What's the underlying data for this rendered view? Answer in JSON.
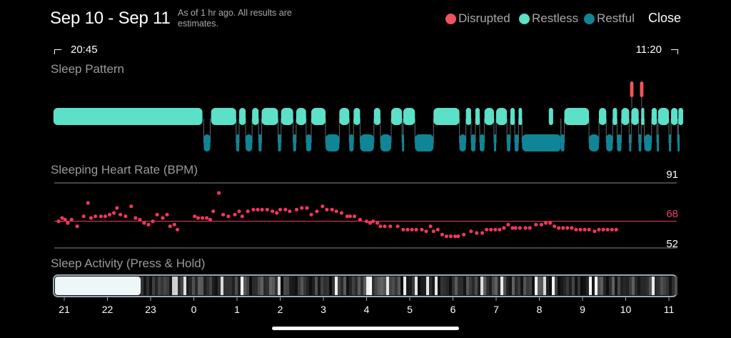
{
  "header": {
    "title": "Sep 10 - Sep 11",
    "note": "As of 1 hr ago. All results are estimates.",
    "close_label": "Close"
  },
  "legend": [
    {
      "label": "Disrupted",
      "color": "#f2545b"
    },
    {
      "label": "Restless",
      "color": "#5ce0c8"
    },
    {
      "label": "Restful",
      "color": "#0f8596"
    }
  ],
  "time_range": {
    "start": "20:45",
    "end": "11:20"
  },
  "sections": {
    "pattern": "Sleep Pattern",
    "heart": "Sleeping Heart Rate (BPM)",
    "activity": "Sleep Activity (Press & Hold)"
  },
  "chart_data": [
    {
      "type": "timeline",
      "title": "Sleep Pattern",
      "x_unit": "hours since 21:00",
      "x_range": [
        -0.25,
        14.33
      ],
      "states": [
        "Disrupted",
        "Restless",
        "Restful"
      ],
      "restless": [
        [
          -0.25,
          3.2
        ],
        [
          3.4,
          3.98
        ],
        [
          4.05,
          4.2
        ],
        [
          4.35,
          4.5
        ],
        [
          4.57,
          4.95
        ],
        [
          5.02,
          5.3
        ],
        [
          5.37,
          5.6
        ],
        [
          5.72,
          6.05
        ],
        [
          6.37,
          6.6
        ],
        [
          6.7,
          6.85
        ],
        [
          7.17,
          7.32
        ],
        [
          7.57,
          7.82
        ],
        [
          7.85,
          8.12
        ],
        [
          8.55,
          9.15
        ],
        [
          9.3,
          9.42
        ],
        [
          9.52,
          9.62
        ],
        [
          9.73,
          9.95
        ],
        [
          10.0,
          10.25
        ],
        [
          10.33,
          10.43
        ],
        [
          10.52,
          10.6
        ],
        [
          11.22,
          11.32
        ],
        [
          11.58,
          12.15
        ],
        [
          12.38,
          12.55
        ],
        [
          12.7,
          12.8
        ],
        [
          12.9,
          13.08
        ],
        [
          13.13,
          13.3
        ],
        [
          13.36,
          13.43
        ],
        [
          13.6,
          13.72
        ],
        [
          13.75,
          14.0
        ],
        [
          14.05,
          14.2
        ],
        [
          14.22,
          14.33
        ]
      ],
      "restful": [
        [
          3.23,
          3.38
        ],
        [
          3.98,
          4.05
        ],
        [
          4.2,
          4.35
        ],
        [
          4.5,
          4.57
        ],
        [
          4.95,
          5.02
        ],
        [
          5.3,
          5.37
        ],
        [
          5.6,
          5.72
        ],
        [
          6.05,
          6.37
        ],
        [
          6.6,
          6.7
        ],
        [
          6.85,
          7.17
        ],
        [
          7.32,
          7.57
        ],
        [
          7.82,
          7.85
        ],
        [
          8.12,
          8.55
        ],
        [
          9.15,
          9.3
        ],
        [
          9.42,
          9.52
        ],
        [
          9.62,
          9.73
        ],
        [
          9.95,
          10.0
        ],
        [
          10.25,
          10.33
        ],
        [
          10.43,
          10.52
        ],
        [
          10.6,
          11.5
        ],
        [
          11.5,
          11.58
        ],
        [
          12.15,
          12.38
        ],
        [
          12.55,
          12.7
        ],
        [
          12.8,
          12.9
        ],
        [
          13.08,
          13.13
        ],
        [
          13.3,
          13.36
        ],
        [
          13.43,
          13.6
        ],
        [
          13.72,
          13.75
        ],
        [
          14.0,
          14.05
        ],
        [
          14.2,
          14.22
        ]
      ],
      "disrupted": [
        [
          13.1,
          13.18
        ],
        [
          13.33,
          13.41
        ]
      ]
    },
    {
      "type": "scatter",
      "title": "Sleeping Heart Rate (BPM)",
      "x_unit": "hours since 21:00",
      "ylim": [
        52,
        91
      ],
      "reference_lines": [
        91,
        68,
        52
      ],
      "points": [
        [
          -0.13,
          68
        ],
        [
          -0.05,
          70
        ],
        [
          0.02,
          69
        ],
        [
          0.08,
          67
        ],
        [
          0.17,
          69
        ],
        [
          0.3,
          65
        ],
        [
          0.45,
          71
        ],
        [
          0.55,
          79
        ],
        [
          0.62,
          70
        ],
        [
          0.72,
          71
        ],
        [
          0.85,
          71
        ],
        [
          0.95,
          71
        ],
        [
          1.05,
          72
        ],
        [
          1.15,
          73
        ],
        [
          1.22,
          76
        ],
        [
          1.3,
          72
        ],
        [
          1.42,
          71
        ],
        [
          1.55,
          77
        ],
        [
          1.65,
          70
        ],
        [
          1.75,
          69
        ],
        [
          1.85,
          67
        ],
        [
          1.95,
          66
        ],
        [
          2.05,
          68
        ],
        [
          2.15,
          72
        ],
        [
          2.28,
          70
        ],
        [
          2.38,
          72
        ],
        [
          2.45,
          65
        ],
        [
          2.55,
          66
        ],
        [
          2.62,
          63
        ],
        [
          3.02,
          71
        ],
        [
          3.1,
          70
        ],
        [
          3.2,
          70
        ],
        [
          3.3,
          70
        ],
        [
          3.38,
          69
        ],
        [
          3.45,
          74
        ],
        [
          3.58,
          85
        ],
        [
          3.68,
          72
        ],
        [
          3.8,
          71
        ],
        [
          3.95,
          72
        ],
        [
          4.05,
          74
        ],
        [
          4.12,
          71
        ],
        [
          4.25,
          74
        ],
        [
          4.38,
          75
        ],
        [
          4.48,
          75
        ],
        [
          4.58,
          75
        ],
        [
          4.7,
          75
        ],
        [
          4.82,
          74
        ],
        [
          4.92,
          73
        ],
        [
          5.0,
          75
        ],
        [
          5.12,
          75
        ],
        [
          5.22,
          74
        ],
        [
          5.38,
          75
        ],
        [
          5.5,
          76
        ],
        [
          5.62,
          76
        ],
        [
          5.72,
          72
        ],
        [
          5.85,
          74
        ],
        [
          5.98,
          77
        ],
        [
          6.08,
          75
        ],
        [
          6.2,
          75
        ],
        [
          6.3,
          74
        ],
        [
          6.42,
          73
        ],
        [
          6.55,
          71
        ],
        [
          6.62,
          71
        ],
        [
          6.72,
          71
        ],
        [
          6.85,
          69
        ],
        [
          7.0,
          68
        ],
        [
          7.08,
          67
        ],
        [
          7.15,
          68
        ],
        [
          7.25,
          67
        ],
        [
          7.32,
          65
        ],
        [
          7.42,
          65
        ],
        [
          7.55,
          65
        ],
        [
          7.72,
          65
        ],
        [
          7.85,
          63
        ],
        [
          7.95,
          63
        ],
        [
          8.05,
          63
        ],
        [
          8.15,
          63
        ],
        [
          8.28,
          63
        ],
        [
          8.38,
          62
        ],
        [
          8.48,
          65
        ],
        [
          8.55,
          62
        ],
        [
          8.65,
          63
        ],
        [
          8.75,
          60
        ],
        [
          8.85,
          59
        ],
        [
          8.95,
          59
        ],
        [
          9.05,
          59
        ],
        [
          9.12,
          59
        ],
        [
          9.25,
          60
        ],
        [
          9.42,
          62
        ],
        [
          9.55,
          61
        ],
        [
          9.68,
          61
        ],
        [
          9.78,
          63
        ],
        [
          9.88,
          63
        ],
        [
          9.98,
          63
        ],
        [
          10.08,
          63
        ],
        [
          10.18,
          64
        ],
        [
          10.28,
          66
        ],
        [
          10.38,
          64
        ],
        [
          10.45,
          64
        ],
        [
          10.55,
          64
        ],
        [
          10.68,
          64
        ],
        [
          10.78,
          64
        ],
        [
          10.92,
          66
        ],
        [
          11.05,
          66
        ],
        [
          11.15,
          67
        ],
        [
          11.25,
          67
        ],
        [
          11.35,
          65
        ],
        [
          11.45,
          64
        ],
        [
          11.55,
          64
        ],
        [
          11.65,
          64
        ],
        [
          11.75,
          64
        ],
        [
          11.85,
          63
        ],
        [
          11.95,
          63
        ],
        [
          12.05,
          63
        ],
        [
          12.15,
          63
        ],
        [
          12.28,
          62
        ],
        [
          12.38,
          63
        ],
        [
          12.48,
          63
        ],
        [
          12.58,
          63
        ],
        [
          12.68,
          63
        ],
        [
          12.78,
          63
        ]
      ]
    },
    {
      "type": "heatmap",
      "title": "Sleep Activity (Press & Hold)",
      "x_ticks": [
        "21",
        "22",
        "23",
        "0",
        "1",
        "2",
        "3",
        "4",
        "5",
        "6",
        "7",
        "8",
        "9",
        "10",
        "11"
      ],
      "scale": "white = high activity, black = low activity"
    }
  ]
}
